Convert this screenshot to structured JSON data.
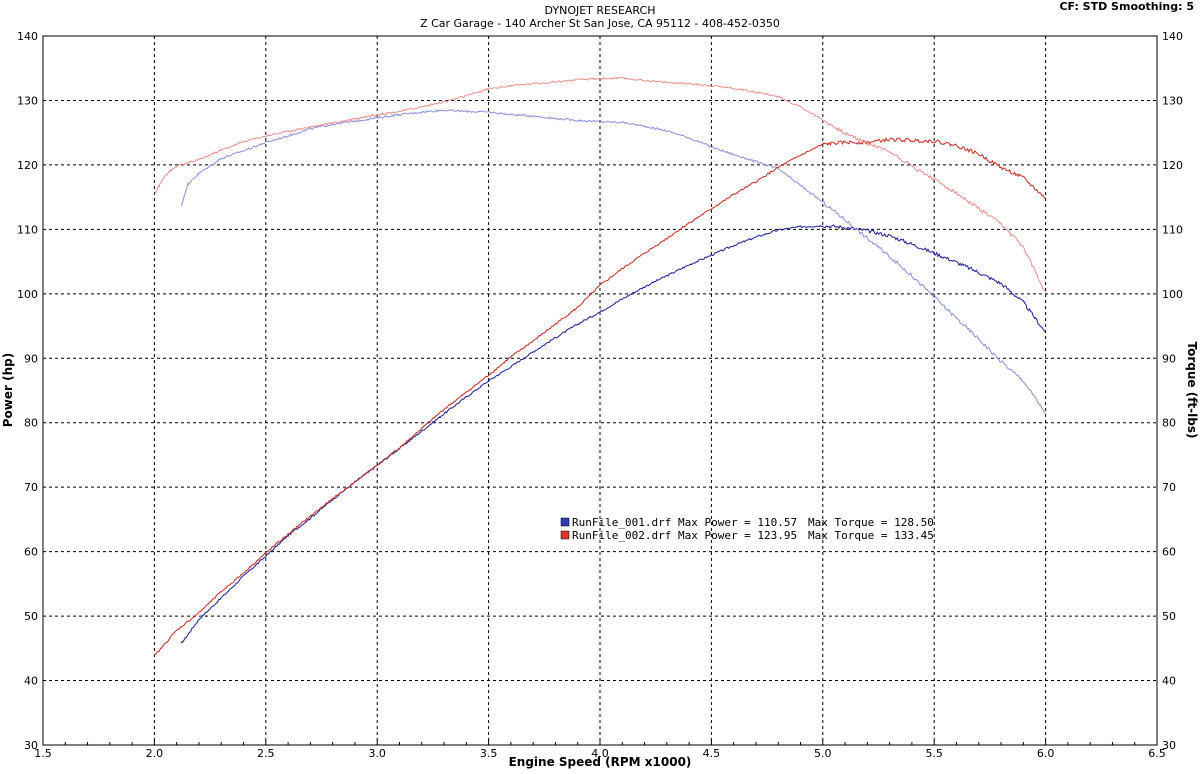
{
  "chart_data": {
    "type": "line",
    "title": "DYNOJET RESEARCH",
    "subtitle": "Z Car Garage - 140 Archer St San Jose, CA 95112 - 408-452-0350",
    "corner_info": "CF: STD  Smoothing: 5",
    "xlabel": "Engine Speed (RPM x1000)",
    "ylabel_left": "Power (hp)",
    "ylabel_right": "Torque (ft-lbs)",
    "xlim": [
      1.5,
      6.5
    ],
    "ylim": [
      30,
      140
    ],
    "x_ticks": [
      "1.5",
      "2.0",
      "2.5",
      "3.0",
      "3.5",
      "4.0",
      "4.5",
      "5.0",
      "5.5",
      "6.0",
      "6.5"
    ],
    "y_ticks": [
      "30",
      "40",
      "50",
      "60",
      "70",
      "80",
      "90",
      "100",
      "110",
      "120",
      "130",
      "140"
    ],
    "grid": true,
    "legend": [
      {
        "file": "RunFile_001.drf",
        "text": "RunFile_001.drf Max Power = 110.57",
        "torque_text": "Max Torque = 128.50",
        "color": "#2a3fb5"
      },
      {
        "file": "RunFile_002.drf",
        "text": "RunFile_002.drf Max Power = 123.95",
        "torque_text": "Max Torque = 133.45",
        "color": "#d83a2a"
      }
    ],
    "series": [
      {
        "name": "RunFile_001.drf",
        "measure": "power",
        "color": "#1a1f9a",
        "x": [
          2.12,
          2.2,
          2.3,
          2.4,
          2.5,
          2.6,
          2.7,
          2.8,
          2.9,
          3.0,
          3.1,
          3.2,
          3.3,
          3.4,
          3.5,
          3.6,
          3.7,
          3.8,
          3.9,
          4.0,
          4.1,
          4.2,
          4.3,
          4.4,
          4.5,
          4.6,
          4.7,
          4.8,
          4.9,
          5.0,
          5.1,
          5.2,
          5.3,
          5.4,
          5.5,
          5.6,
          5.7,
          5.8,
          5.9,
          6.0
        ],
        "y": [
          45.7,
          49.5,
          52.8,
          56.2,
          59.3,
          62.5,
          65.2,
          68.1,
          70.8,
          73.4,
          76.0,
          78.7,
          81.4,
          84.0,
          86.5,
          88.7,
          91.0,
          93.2,
          95.3,
          97.2,
          99.2,
          101.1,
          102.8,
          104.5,
          106.0,
          107.5,
          108.8,
          109.9,
          110.4,
          110.57,
          110.3,
          109.8,
          109.0,
          107.7,
          106.3,
          104.9,
          103.3,
          101.6,
          98.7,
          94.0
        ]
      },
      {
        "name": "RunFile_001.drf",
        "measure": "torque",
        "color": "#8a8ee0",
        "x": [
          2.12,
          2.15,
          2.2,
          2.3,
          2.4,
          2.5,
          2.6,
          2.7,
          2.8,
          2.9,
          3.0,
          3.1,
          3.2,
          3.3,
          3.4,
          3.5,
          3.6,
          3.7,
          3.8,
          3.9,
          4.0,
          4.1,
          4.2,
          4.3,
          4.4,
          4.5,
          4.6,
          4.7,
          4.8,
          4.9,
          5.0,
          5.1,
          5.2,
          5.3,
          5.4,
          5.5,
          5.6,
          5.7,
          5.8,
          5.9,
          6.0
        ],
        "y": [
          113.5,
          117.0,
          118.7,
          121.0,
          122.2,
          123.5,
          124.5,
          125.6,
          126.3,
          126.8,
          127.3,
          127.8,
          128.2,
          128.5,
          128.3,
          128.2,
          127.8,
          127.6,
          127.2,
          126.9,
          126.7,
          126.6,
          126.0,
          125.3,
          124.2,
          122.8,
          121.6,
          120.5,
          119.4,
          116.8,
          114.2,
          111.5,
          108.6,
          105.8,
          102.8,
          99.5,
          96.2,
          93.0,
          89.5,
          86.5,
          81.5
        ]
      },
      {
        "name": "RunFile_002.drf",
        "measure": "power",
        "color": "#c92a1e",
        "x": [
          2.0,
          2.1,
          2.2,
          2.3,
          2.4,
          2.5,
          2.6,
          2.7,
          2.8,
          2.9,
          3.0,
          3.1,
          3.2,
          3.3,
          3.4,
          3.5,
          3.6,
          3.7,
          3.8,
          3.9,
          4.0,
          4.1,
          4.2,
          4.3,
          4.4,
          4.5,
          4.6,
          4.7,
          4.8,
          4.9,
          5.0,
          5.1,
          5.2,
          5.3,
          5.4,
          5.5,
          5.6,
          5.7,
          5.8,
          5.9,
          6.0
        ],
        "y": [
          43.8,
          47.8,
          50.5,
          53.8,
          56.7,
          59.8,
          62.7,
          65.5,
          68.2,
          70.8,
          73.4,
          76.1,
          79.1,
          82.1,
          84.7,
          87.4,
          90.2,
          92.7,
          95.3,
          97.9,
          101.3,
          103.9,
          106.3,
          108.6,
          111.0,
          113.2,
          115.4,
          117.4,
          119.6,
          121.5,
          123.2,
          123.5,
          123.5,
          123.95,
          123.8,
          123.7,
          123.0,
          121.7,
          119.6,
          118.0,
          114.8
        ]
      },
      {
        "name": "RunFile_002.drf",
        "measure": "torque",
        "color": "#ec8f8a",
        "x": [
          2.0,
          2.05,
          2.1,
          2.2,
          2.3,
          2.4,
          2.5,
          2.6,
          2.7,
          2.8,
          2.9,
          3.0,
          3.1,
          3.2,
          3.3,
          3.4,
          3.5,
          3.6,
          3.7,
          3.8,
          3.9,
          4.0,
          4.1,
          4.2,
          4.3,
          4.4,
          4.5,
          4.6,
          4.7,
          4.8,
          4.9,
          5.0,
          5.1,
          5.2,
          5.3,
          5.4,
          5.5,
          5.6,
          5.7,
          5.8,
          5.9,
          6.0
        ],
        "y": [
          115.5,
          118.5,
          119.8,
          120.8,
          122.3,
          123.6,
          124.5,
          125.2,
          125.9,
          126.5,
          127.2,
          127.8,
          128.3,
          129.0,
          129.8,
          130.7,
          131.8,
          132.3,
          132.6,
          132.9,
          133.2,
          133.4,
          133.45,
          133.1,
          132.8,
          132.6,
          132.3,
          131.9,
          131.3,
          130.6,
          129.0,
          127.0,
          124.9,
          123.4,
          122.1,
          119.8,
          117.8,
          115.6,
          113.2,
          110.8,
          107.3,
          100.2
        ]
      }
    ]
  }
}
